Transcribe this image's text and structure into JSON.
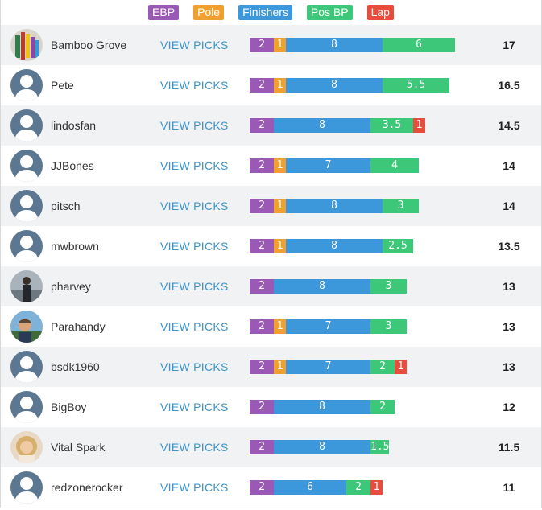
{
  "colors": {
    "EBP": "#9b59b6",
    "Pole": "#f0a030",
    "Finishers": "#3d97db",
    "PosBP": "#3cc878",
    "Lap": "#e74c3c",
    "link": "#3b95cc"
  },
  "legend": [
    {
      "key": "EBP",
      "label": "EBP"
    },
    {
      "key": "Pole",
      "label": "Pole"
    },
    {
      "key": "Finishers",
      "label": "Finishers"
    },
    {
      "key": "PosBP",
      "label": "Pos BP"
    },
    {
      "key": "Lap",
      "label": "Lap"
    }
  ],
  "view_picks_label": "VIEW PICKS",
  "rows": [
    {
      "user": "Bamboo Grove",
      "avatar": "photo-colorful",
      "total": "17",
      "segments": [
        {
          "key": "EBP",
          "value": 2,
          "label": "2"
        },
        {
          "key": "Pole",
          "value": 1,
          "label": "1"
        },
        {
          "key": "Finishers",
          "value": 8,
          "label": "8"
        },
        {
          "key": "PosBP",
          "value": 6,
          "label": "6"
        }
      ]
    },
    {
      "user": "Pete",
      "avatar": "default-silhouette",
      "total": "16.5",
      "segments": [
        {
          "key": "EBP",
          "value": 2,
          "label": "2"
        },
        {
          "key": "Pole",
          "value": 1,
          "label": "1"
        },
        {
          "key": "Finishers",
          "value": 8,
          "label": "8"
        },
        {
          "key": "PosBP",
          "value": 5.5,
          "label": "5.5"
        }
      ]
    },
    {
      "user": "lindosfan",
      "avatar": "default-silhouette",
      "total": "14.5",
      "segments": [
        {
          "key": "EBP",
          "value": 2,
          "label": "2"
        },
        {
          "key": "Finishers",
          "value": 8,
          "label": "8"
        },
        {
          "key": "PosBP",
          "value": 3.5,
          "label": "3.5"
        },
        {
          "key": "Lap",
          "value": 1,
          "label": "1"
        }
      ]
    },
    {
      "user": "JJBones",
      "avatar": "default-silhouette",
      "total": "14",
      "segments": [
        {
          "key": "EBP",
          "value": 2,
          "label": "2"
        },
        {
          "key": "Pole",
          "value": 1,
          "label": "1"
        },
        {
          "key": "Finishers",
          "value": 7,
          "label": "7"
        },
        {
          "key": "PosBP",
          "value": 4,
          "label": "4"
        }
      ]
    },
    {
      "user": "pitsch",
      "avatar": "default-silhouette",
      "total": "14",
      "segments": [
        {
          "key": "EBP",
          "value": 2,
          "label": "2"
        },
        {
          "key": "Pole",
          "value": 1,
          "label": "1"
        },
        {
          "key": "Finishers",
          "value": 8,
          "label": "8"
        },
        {
          "key": "PosBP",
          "value": 3,
          "label": "3"
        }
      ]
    },
    {
      "user": "mwbrown",
      "avatar": "default-silhouette",
      "total": "13.5",
      "segments": [
        {
          "key": "EBP",
          "value": 2,
          "label": "2"
        },
        {
          "key": "Pole",
          "value": 1,
          "label": "1"
        },
        {
          "key": "Finishers",
          "value": 8,
          "label": "8"
        },
        {
          "key": "PosBP",
          "value": 2.5,
          "label": "2.5"
        }
      ]
    },
    {
      "user": "pharvey",
      "avatar": "photo-person-dark",
      "total": "13",
      "segments": [
        {
          "key": "EBP",
          "value": 2,
          "label": "2"
        },
        {
          "key": "Finishers",
          "value": 8,
          "label": "8"
        },
        {
          "key": "PosBP",
          "value": 3,
          "label": "3"
        }
      ]
    },
    {
      "user": "Parahandy",
      "avatar": "photo-person-outdoor",
      "total": "13",
      "segments": [
        {
          "key": "EBP",
          "value": 2,
          "label": "2"
        },
        {
          "key": "Pole",
          "value": 1,
          "label": "1"
        },
        {
          "key": "Finishers",
          "value": 7,
          "label": "7"
        },
        {
          "key": "PosBP",
          "value": 3,
          "label": "3"
        }
      ]
    },
    {
      "user": "bsdk1960",
      "avatar": "default-silhouette",
      "total": "13",
      "segments": [
        {
          "key": "EBP",
          "value": 2,
          "label": "2"
        },
        {
          "key": "Pole",
          "value": 1,
          "label": "1"
        },
        {
          "key": "Finishers",
          "value": 7,
          "label": "7"
        },
        {
          "key": "PosBP",
          "value": 2,
          "label": "2"
        },
        {
          "key": "Lap",
          "value": 1,
          "label": "1"
        }
      ]
    },
    {
      "user": "BigBoy",
      "avatar": "default-silhouette",
      "total": "12",
      "segments": [
        {
          "key": "EBP",
          "value": 2,
          "label": "2"
        },
        {
          "key": "Finishers",
          "value": 8,
          "label": "8"
        },
        {
          "key": "PosBP",
          "value": 2,
          "label": "2"
        }
      ]
    },
    {
      "user": "Vital Spark",
      "avatar": "photo-person-blonde",
      "total": "11.5",
      "segments": [
        {
          "key": "EBP",
          "value": 2,
          "label": "2"
        },
        {
          "key": "Finishers",
          "value": 8,
          "label": "8"
        },
        {
          "key": "PosBP",
          "value": 1.5,
          "label": "1.5"
        }
      ]
    },
    {
      "user": "redzonerocker",
      "avatar": "default-silhouette",
      "total": "11",
      "segments": [
        {
          "key": "EBP",
          "value": 2,
          "label": "2"
        },
        {
          "key": "Finishers",
          "value": 6,
          "label": "6"
        },
        {
          "key": "PosBP",
          "value": 2,
          "label": "2"
        },
        {
          "key": "Lap",
          "value": 1,
          "label": "1"
        }
      ]
    }
  ]
}
